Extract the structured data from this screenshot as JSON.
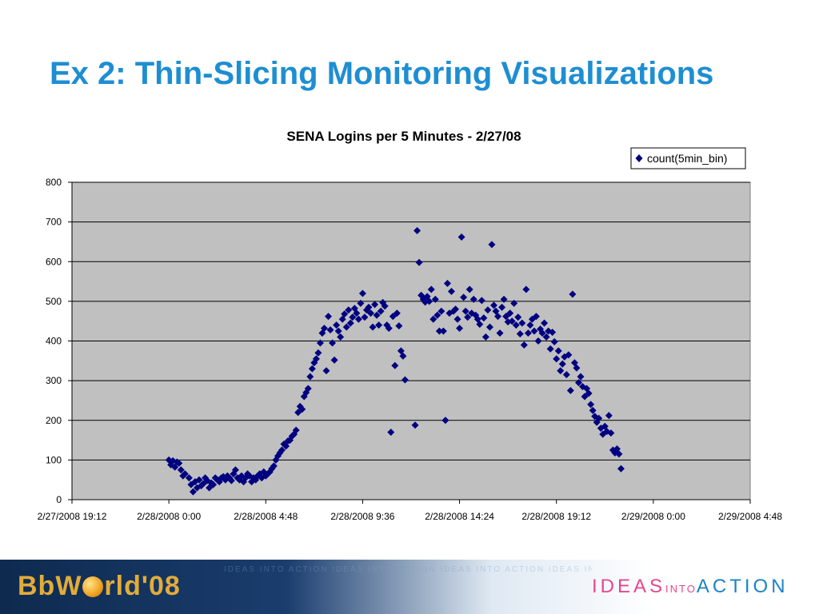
{
  "slide": {
    "title": "Ex 2: Thin-Slicing Monitoring Visualizations"
  },
  "colors": {
    "title": "#1e8ed2",
    "plot_background": "#c0c0c0",
    "marker": "#000080"
  },
  "chart_data": {
    "type": "scatter",
    "title": "SENA Logins per 5 Minutes - 2/27/08",
    "xlabel": "",
    "ylabel": "",
    "x_unit": "hours after 2/27/2008 19:12",
    "xlim": [
      0,
      33.6
    ],
    "ylim": [
      0,
      800
    ],
    "y_ticks": [
      0,
      100,
      200,
      300,
      400,
      500,
      600,
      700,
      800
    ],
    "x_tick_labels": [
      "2/27/2008 19:12",
      "2/28/2008 0:00",
      "2/28/2008 4:48",
      "2/28/2008 9:36",
      "2/28/2008 14:24",
      "2/28/2008 19:12",
      "2/29/2008 0:00",
      "2/29/2008 4:48"
    ],
    "grid": true,
    "legend_position": "top-right",
    "series": [
      {
        "name": "count(5min_bin)",
        "color": "#000080",
        "marker": "diamond",
        "points": [
          [
            4.8,
            100
          ],
          [
            4.9,
            88
          ],
          [
            5.0,
            98
          ],
          [
            5.1,
            82
          ],
          [
            5.2,
            95
          ],
          [
            5.3,
            92
          ],
          [
            5.4,
            75
          ],
          [
            5.5,
            60
          ],
          [
            5.6,
            65
          ],
          [
            5.8,
            55
          ],
          [
            5.9,
            38
          ],
          [
            6.0,
            20
          ],
          [
            6.1,
            45
          ],
          [
            6.2,
            30
          ],
          [
            6.3,
            50
          ],
          [
            6.4,
            35
          ],
          [
            6.5,
            40
          ],
          [
            6.6,
            55
          ],
          [
            6.7,
            48
          ],
          [
            6.8,
            30
          ],
          [
            6.9,
            42
          ],
          [
            7.0,
            38
          ],
          [
            7.1,
            55
          ],
          [
            7.2,
            50
          ],
          [
            7.3,
            45
          ],
          [
            7.4,
            55
          ],
          [
            7.5,
            58
          ],
          [
            7.6,
            50
          ],
          [
            7.7,
            60
          ],
          [
            7.8,
            55
          ],
          [
            7.9,
            48
          ],
          [
            8.0,
            65
          ],
          [
            8.1,
            75
          ],
          [
            8.2,
            55
          ],
          [
            8.3,
            50
          ],
          [
            8.4,
            60
          ],
          [
            8.5,
            45
          ],
          [
            8.6,
            55
          ],
          [
            8.7,
            65
          ],
          [
            8.8,
            60
          ],
          [
            8.9,
            45
          ],
          [
            9.0,
            55
          ],
          [
            9.1,
            50
          ],
          [
            9.2,
            60
          ],
          [
            9.3,
            65
          ],
          [
            9.4,
            55
          ],
          [
            9.5,
            70
          ],
          [
            9.6,
            60
          ],
          [
            9.7,
            65
          ],
          [
            9.8,
            70
          ],
          [
            9.9,
            78
          ],
          [
            10.0,
            85
          ],
          [
            10.1,
            100
          ],
          [
            10.2,
            110
          ],
          [
            10.3,
            118
          ],
          [
            10.4,
            125
          ],
          [
            10.5,
            140
          ],
          [
            10.6,
            135
          ],
          [
            10.7,
            148
          ],
          [
            10.8,
            150
          ],
          [
            10.9,
            160
          ],
          [
            11.0,
            165
          ],
          [
            11.1,
            175
          ],
          [
            11.2,
            220
          ],
          [
            11.3,
            235
          ],
          [
            11.4,
            228
          ],
          [
            11.5,
            260
          ],
          [
            11.6,
            270
          ],
          [
            11.7,
            280
          ],
          [
            11.8,
            310
          ],
          [
            11.9,
            330
          ],
          [
            12.0,
            345
          ],
          [
            12.1,
            355
          ],
          [
            12.2,
            370
          ],
          [
            12.3,
            395
          ],
          [
            12.4,
            420
          ],
          [
            12.5,
            432
          ],
          [
            12.6,
            325
          ],
          [
            12.7,
            462
          ],
          [
            12.8,
            428
          ],
          [
            12.9,
            395
          ],
          [
            13.0,
            352
          ],
          [
            13.1,
            440
          ],
          [
            13.2,
            425
          ],
          [
            13.3,
            410
          ],
          [
            13.4,
            455
          ],
          [
            13.5,
            468
          ],
          [
            13.6,
            435
          ],
          [
            13.7,
            478
          ],
          [
            13.8,
            445
          ],
          [
            13.9,
            460
          ],
          [
            14.0,
            482
          ],
          [
            14.1,
            470
          ],
          [
            14.2,
            455
          ],
          [
            14.3,
            495
          ],
          [
            14.4,
            520
          ],
          [
            14.5,
            460
          ],
          [
            14.6,
            478
          ],
          [
            14.7,
            485
          ],
          [
            14.8,
            470
          ],
          [
            14.9,
            435
          ],
          [
            15.0,
            492
          ],
          [
            15.1,
            465
          ],
          [
            15.2,
            440
          ],
          [
            15.3,
            475
          ],
          [
            15.4,
            497
          ],
          [
            15.5,
            488
          ],
          [
            15.6,
            440
          ],
          [
            15.7,
            432
          ],
          [
            15.8,
            170
          ],
          [
            15.9,
            462
          ],
          [
            16.0,
            338
          ],
          [
            16.1,
            470
          ],
          [
            16.2,
            438
          ],
          [
            16.3,
            375
          ],
          [
            16.4,
            362
          ],
          [
            16.5,
            302
          ],
          [
            17.0,
            188
          ],
          [
            17.1,
            678
          ],
          [
            17.2,
            598
          ],
          [
            17.3,
            515
          ],
          [
            17.4,
            505
          ],
          [
            17.5,
            498
          ],
          [
            17.6,
            512
          ],
          [
            17.7,
            500
          ],
          [
            17.8,
            530
          ],
          [
            17.9,
            455
          ],
          [
            18.0,
            505
          ],
          [
            18.1,
            465
          ],
          [
            18.2,
            425
          ],
          [
            18.3,
            475
          ],
          [
            18.4,
            425
          ],
          [
            18.5,
            200
          ],
          [
            18.6,
            545
          ],
          [
            18.7,
            470
          ],
          [
            18.8,
            525
          ],
          [
            18.9,
            475
          ],
          [
            19.0,
            480
          ],
          [
            19.1,
            455
          ],
          [
            19.2,
            432
          ],
          [
            19.3,
            662
          ],
          [
            19.4,
            510
          ],
          [
            19.5,
            475
          ],
          [
            19.6,
            460
          ],
          [
            19.7,
            530
          ],
          [
            19.8,
            470
          ],
          [
            19.9,
            505
          ],
          [
            20.0,
            465
          ],
          [
            20.1,
            455
          ],
          [
            20.2,
            442
          ],
          [
            20.3,
            502
          ],
          [
            20.4,
            458
          ],
          [
            20.5,
            410
          ],
          [
            20.6,
            478
          ],
          [
            20.7,
            435
          ],
          [
            20.8,
            643
          ],
          [
            20.9,
            490
          ],
          [
            21.0,
            475
          ],
          [
            21.1,
            462
          ],
          [
            21.2,
            420
          ],
          [
            21.3,
            485
          ],
          [
            21.4,
            505
          ],
          [
            21.5,
            462
          ],
          [
            21.6,
            448
          ],
          [
            21.7,
            470
          ],
          [
            21.8,
            450
          ],
          [
            21.9,
            495
          ],
          [
            22.0,
            440
          ],
          [
            22.1,
            460
          ],
          [
            22.2,
            418
          ],
          [
            22.3,
            445
          ],
          [
            22.4,
            390
          ],
          [
            22.5,
            530
          ],
          [
            22.6,
            420
          ],
          [
            22.7,
            440
          ],
          [
            22.8,
            455
          ],
          [
            22.9,
            425
          ],
          [
            23.0,
            462
          ],
          [
            23.1,
            400
          ],
          [
            23.2,
            430
          ],
          [
            23.3,
            420
          ],
          [
            23.4,
            445
          ],
          [
            23.5,
            410
          ],
          [
            23.6,
            425
          ],
          [
            23.7,
            380
          ],
          [
            23.8,
            422
          ],
          [
            23.9,
            398
          ],
          [
            24.0,
            355
          ],
          [
            24.1,
            375
          ],
          [
            24.2,
            325
          ],
          [
            24.3,
            342
          ],
          [
            24.4,
            360
          ],
          [
            24.5,
            315
          ],
          [
            24.6,
            365
          ],
          [
            24.7,
            275
          ],
          [
            24.8,
            518
          ],
          [
            24.9,
            345
          ],
          [
            25.0,
            332
          ],
          [
            25.1,
            295
          ],
          [
            25.2,
            310
          ],
          [
            25.3,
            285
          ],
          [
            25.4,
            260
          ],
          [
            25.5,
            280
          ],
          [
            25.6,
            268
          ],
          [
            25.7,
            240
          ],
          [
            25.8,
            225
          ],
          [
            25.9,
            210
          ],
          [
            26.0,
            195
          ],
          [
            26.1,
            205
          ],
          [
            26.2,
            180
          ],
          [
            26.3,
            165
          ],
          [
            26.4,
            185
          ],
          [
            26.5,
            172
          ],
          [
            26.6,
            212
          ],
          [
            26.7,
            168
          ],
          [
            26.8,
            125
          ],
          [
            26.9,
            118
          ],
          [
            27.0,
            128
          ],
          [
            27.1,
            115
          ],
          [
            27.2,
            78
          ]
        ]
      }
    ]
  },
  "footer": {
    "logo": "BbW",
    "logo_rest": "rld'08",
    "tagline_ideas": "IDEAS",
    "tagline_into": "INTO",
    "tagline_action": "ACTION",
    "strip_text": "IDEAS INTO ACTION IDEAS INTO ACTION IDEAS INTO ACTION IDEAS INTO ACTION IDEAS INTO ACTION"
  }
}
